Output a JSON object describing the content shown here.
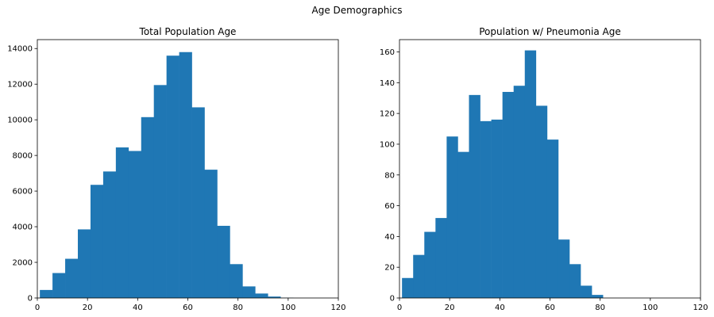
{
  "figure": {
    "suptitle": "Age Demographics"
  },
  "chart_data": [
    {
      "type": "bar",
      "subtype": "histogram",
      "title": "Total Population Age",
      "xlabel": "",
      "ylabel": "",
      "xlim": [
        0,
        120
      ],
      "ylim": [
        0,
        14500
      ],
      "xticks": [
        0,
        20,
        40,
        60,
        80,
        100,
        120
      ],
      "yticks": [
        0,
        2000,
        4000,
        6000,
        8000,
        10000,
        12000,
        14000
      ],
      "grid": false,
      "color": "#1f77b4",
      "bin_edges": [
        1,
        6.05,
        11.1,
        16.15,
        21.2,
        26.25,
        31.3,
        36.35,
        41.4,
        46.45,
        51.5,
        56.55,
        61.6,
        66.65,
        71.7,
        76.75,
        81.8,
        86.85,
        91.9,
        96.95,
        102
      ],
      "values": [
        450,
        1400,
        2200,
        3850,
        6350,
        7100,
        8450,
        8250,
        10150,
        11950,
        13600,
        13800,
        10700,
        7200,
        4050,
        1900,
        650,
        250,
        80,
        10
      ]
    },
    {
      "type": "bar",
      "subtype": "histogram",
      "title": "Population w/ Pneumonia Age",
      "xlabel": "",
      "ylabel": "",
      "xlim": [
        0,
        120
      ],
      "ylim": [
        0,
        168
      ],
      "xticks": [
        0,
        20,
        40,
        60,
        80,
        100,
        120
      ],
      "yticks": [
        0,
        20,
        40,
        60,
        80,
        100,
        120,
        140,
        160
      ],
      "grid": false,
      "color": "#1f77b4",
      "bin_edges": [
        1,
        5.45,
        9.9,
        14.35,
        18.8,
        23.25,
        27.7,
        32.15,
        36.6,
        41.05,
        45.5,
        49.95,
        54.4,
        58.85,
        63.3,
        67.75,
        72.2,
        76.65,
        81.1,
        85.55,
        90
      ],
      "values": [
        13,
        28,
        43,
        52,
        105,
        95,
        132,
        115,
        116,
        134,
        138,
        161,
        125,
        103,
        38,
        22,
        8,
        2,
        0,
        0
      ]
    }
  ]
}
